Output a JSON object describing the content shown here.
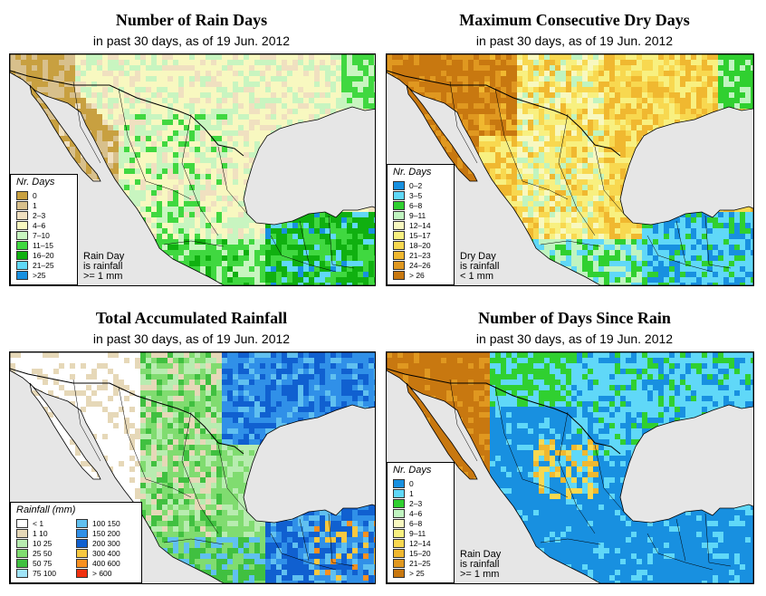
{
  "panels": [
    {
      "title": "Number of Rain Days",
      "subtitle": "in past 30 days, as of  19 Jun. 2012",
      "legend_title": "Nr. Days",
      "legend_items": [
        {
          "label": "0",
          "color": "#c8a040"
        },
        {
          "label": "1",
          "color": "#d8c08c"
        },
        {
          "label": "2–3",
          "color": "#f0e0c0"
        },
        {
          "label": "4–6",
          "color": "#f8f8c0"
        },
        {
          "label": "7–10",
          "color": "#c8f5c0"
        },
        {
          "label": "11–15",
          "color": "#40d840"
        },
        {
          "label": "16–20",
          "color": "#10b010"
        },
        {
          "label": "21–25",
          "color": "#60d8f8"
        },
        {
          "label": ">25",
          "color": "#1890e0"
        }
      ],
      "note": [
        "Rain Day",
        "is rainfall",
        ">= 1 mm"
      ]
    },
    {
      "title": "Maximum Consecutive Dry Days",
      "subtitle": "in past 30 days, as of  19 Jun. 2012",
      "legend_title": "Nr. Days",
      "legend_items": [
        {
          "label": "0–2",
          "color": "#1890e0"
        },
        {
          "label": "3–5",
          "color": "#60d8f8"
        },
        {
          "label": "6–8",
          "color": "#30d030"
        },
        {
          "label": "9–11",
          "color": "#c0f4c0"
        },
        {
          "label": "12–14",
          "color": "#f8f8c0"
        },
        {
          "label": "15–17",
          "color": "#f8f080"
        },
        {
          "label": "18–20",
          "color": "#f8d850"
        },
        {
          "label": "21–23",
          "color": "#f0b830"
        },
        {
          "label": "24–26",
          "color": "#e09820"
        },
        {
          "label": "> 26",
          "color": "#c87810"
        }
      ],
      "note": [
        "Dry Day",
        "is rainfall",
        "< 1 mm"
      ]
    },
    {
      "title": "Total Accumulated Rainfall",
      "subtitle": "in past 30 days, as of  19 Jun. 2012",
      "legend_title": "Rainfall (mm)",
      "legend_items": [
        {
          "label": "< 1",
          "color": "#ffffff"
        },
        {
          "label": "1    10",
          "color": "#e6d8b8"
        },
        {
          "label": "10    25",
          "color": "#b8ecb0"
        },
        {
          "label": "25    50",
          "color": "#80dc70"
        },
        {
          "label": "50    75",
          "color": "#40c040"
        },
        {
          "label": "75   100",
          "color": "#a0e4f8"
        },
        {
          "label": "100   150",
          "color": "#60c0f0"
        },
        {
          "label": "150   200",
          "color": "#3090e8"
        },
        {
          "label": "200   300",
          "color": "#1060d0"
        },
        {
          "label": "300   400",
          "color": "#f8c840"
        },
        {
          "label": "400   600",
          "color": "#f89020"
        },
        {
          "label": "> 600",
          "color": "#f03010"
        }
      ],
      "note": []
    },
    {
      "title": "Number of Days Since Rain",
      "subtitle": "in past 30 days, as of  19 Jun. 2012",
      "legend_title": "Nr. Days",
      "legend_items": [
        {
          "label": "0",
          "color": "#1890e0"
        },
        {
          "label": "1",
          "color": "#60d8f8"
        },
        {
          "label": "2–3",
          "color": "#30d030"
        },
        {
          "label": "4–6",
          "color": "#c0f4c0"
        },
        {
          "label": "6–8",
          "color": "#f8f8c0"
        },
        {
          "label": "9–11",
          "color": "#f8f080"
        },
        {
          "label": "12–14",
          "color": "#f8d850"
        },
        {
          "label": "15–20",
          "color": "#f0b830"
        },
        {
          "label": "21–25",
          "color": "#e09820"
        },
        {
          "label": "> 25",
          "color": "#c87810"
        }
      ],
      "note": [
        "Rain Day",
        "is rainfall",
        ">= 1 mm"
      ]
    }
  ],
  "colors": {
    "ocean": "#e6e6e6",
    "border": "#000000"
  }
}
